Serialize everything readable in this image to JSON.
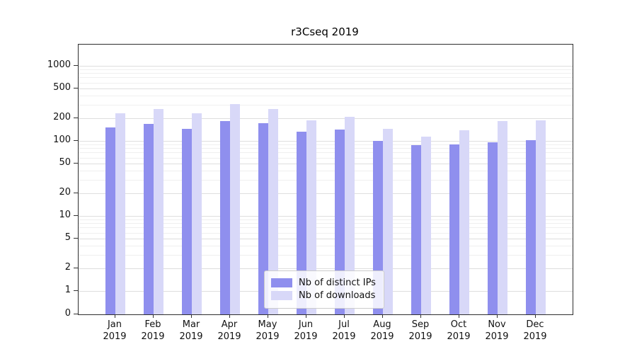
{
  "chart_data": {
    "type": "bar",
    "title": "r3Cseq 2019",
    "categories": [
      "Jan",
      "Feb",
      "Mar",
      "Apr",
      "May",
      "Jun",
      "Jul",
      "Aug",
      "Sep",
      "Oct",
      "Nov",
      "Dec"
    ],
    "year_label": "2019",
    "yscale": "symlog",
    "yticks": [
      0,
      1,
      2,
      5,
      10,
      20,
      50,
      100,
      200,
      500,
      1000
    ],
    "ylim": [
      0,
      1000
    ],
    "grid": true,
    "legend_position": "lower center",
    "series": [
      {
        "name": "Nb of distinct IPs",
        "color": "#8f8fee",
        "values": [
          150,
          170,
          145,
          185,
          172,
          132,
          142,
          100,
          88,
          90,
          96,
          103
        ]
      },
      {
        "name": "Nb of downloads",
        "color": "#d8d8f8",
        "values": [
          235,
          265,
          235,
          310,
          265,
          190,
          210,
          145,
          115,
          140,
          183,
          190
        ]
      }
    ]
  }
}
